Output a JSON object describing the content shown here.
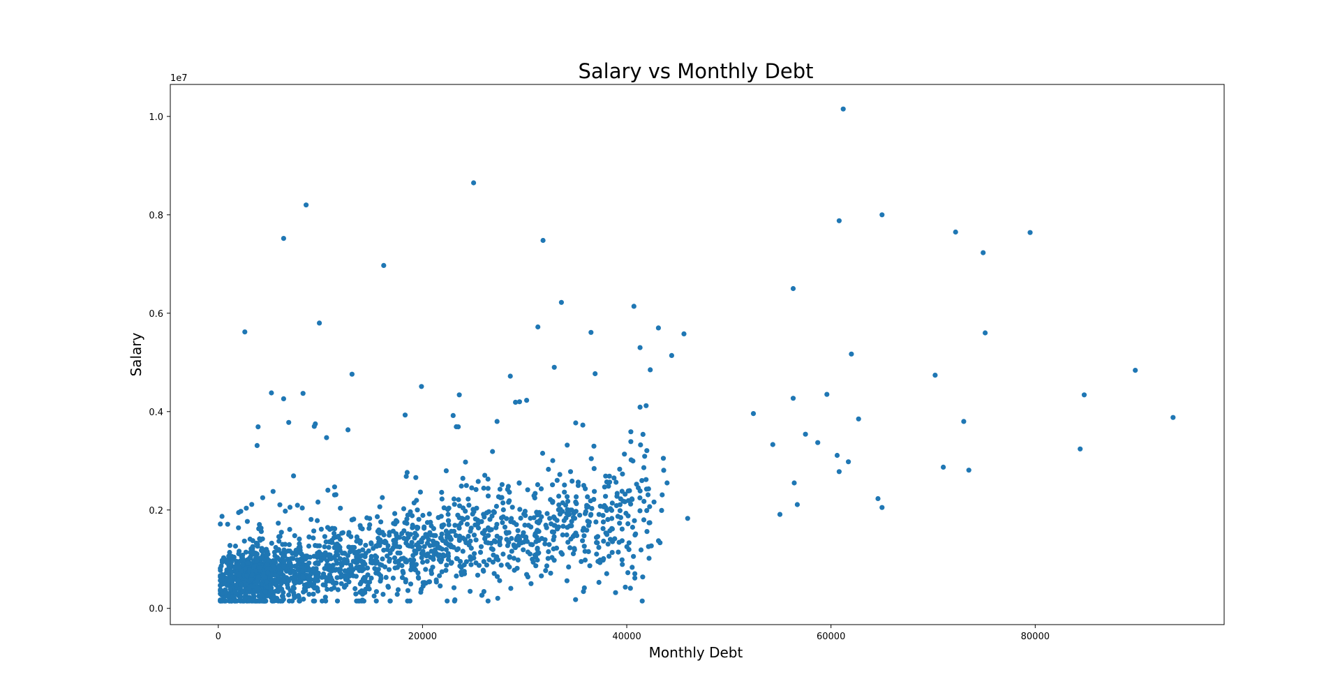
{
  "chart_data": {
    "type": "scatter",
    "title": "Salary vs Monthly Debt",
    "xlabel": "Monthly Debt",
    "ylabel": "Salary",
    "y_offset_label": "1e7",
    "xlim": [
      -4700,
      98500
    ],
    "ylim": [
      -330000,
      10650000
    ],
    "xticks": [
      0,
      20000,
      40000,
      60000,
      80000
    ],
    "xtick_labels": [
      "0",
      "20000",
      "40000",
      "60000",
      "80000"
    ],
    "yticks": [
      0,
      2000000,
      4000000,
      6000000,
      8000000,
      10000000
    ],
    "ytick_labels": [
      "0.0",
      "0.2",
      "0.4",
      "0.6",
      "0.8",
      "1.0"
    ],
    "grid": false,
    "marker_color": "#1f77b4",
    "series": [
      {
        "points": [
          [
            61200,
            10150000
          ],
          [
            25000,
            8650000
          ],
          [
            8600,
            8200000
          ],
          [
            65000,
            8000000
          ],
          [
            60800,
            7880000
          ],
          [
            72200,
            7650000
          ],
          [
            79500,
            7640000
          ],
          [
            6400,
            7520000
          ],
          [
            31800,
            7480000
          ],
          [
            74900,
            7230000
          ],
          [
            16200,
            6970000
          ],
          [
            56300,
            6500000
          ],
          [
            33600,
            6220000
          ],
          [
            40700,
            6140000
          ],
          [
            9900,
            5800000
          ],
          [
            31300,
            5720000
          ],
          [
            43100,
            5700000
          ],
          [
            2600,
            5620000
          ],
          [
            36500,
            5610000
          ],
          [
            75100,
            5600000
          ],
          [
            45600,
            5580000
          ],
          [
            41300,
            5300000
          ],
          [
            62000,
            5170000
          ],
          [
            44400,
            5140000
          ],
          [
            32900,
            4900000
          ],
          [
            42300,
            4850000
          ],
          [
            89800,
            4840000
          ],
          [
            13100,
            4760000
          ],
          [
            36900,
            4770000
          ],
          [
            70200,
            4740000
          ],
          [
            28600,
            4720000
          ],
          [
            19900,
            4510000
          ],
          [
            5200,
            4380000
          ],
          [
            8300,
            4370000
          ],
          [
            59600,
            4350000
          ],
          [
            84800,
            4340000
          ],
          [
            23600,
            4340000
          ],
          [
            56300,
            4270000
          ],
          [
            6400,
            4260000
          ],
          [
            30200,
            4230000
          ],
          [
            29500,
            4200000
          ],
          [
            29100,
            4190000
          ],
          [
            41900,
            4120000
          ],
          [
            41300,
            4090000
          ],
          [
            52400,
            3960000
          ],
          [
            18300,
            3930000
          ],
          [
            23000,
            3920000
          ],
          [
            93500,
            3880000
          ],
          [
            62700,
            3850000
          ],
          [
            73000,
            3800000
          ],
          [
            27300,
            3800000
          ],
          [
            6900,
            3780000
          ],
          [
            35000,
            3770000
          ],
          [
            9500,
            3750000
          ],
          [
            3900,
            3690000
          ],
          [
            23500,
            3690000
          ],
          [
            9400,
            3700000
          ],
          [
            12700,
            3630000
          ],
          [
            40400,
            3590000
          ],
          [
            57500,
            3540000
          ],
          [
            58700,
            3370000
          ],
          [
            10600,
            3470000
          ],
          [
            54300,
            3330000
          ],
          [
            3800,
            3310000
          ],
          [
            84400,
            3240000
          ],
          [
            71000,
            2870000
          ],
          [
            73500,
            2810000
          ],
          [
            60800,
            2780000
          ],
          [
            64600,
            2230000
          ],
          [
            65000,
            2050000
          ],
          [
            61700,
            2980000
          ],
          [
            60600,
            3110000
          ],
          [
            56400,
            2550000
          ],
          [
            56700,
            2110000
          ],
          [
            55000,
            1910000
          ]
        ]
      }
    ]
  }
}
